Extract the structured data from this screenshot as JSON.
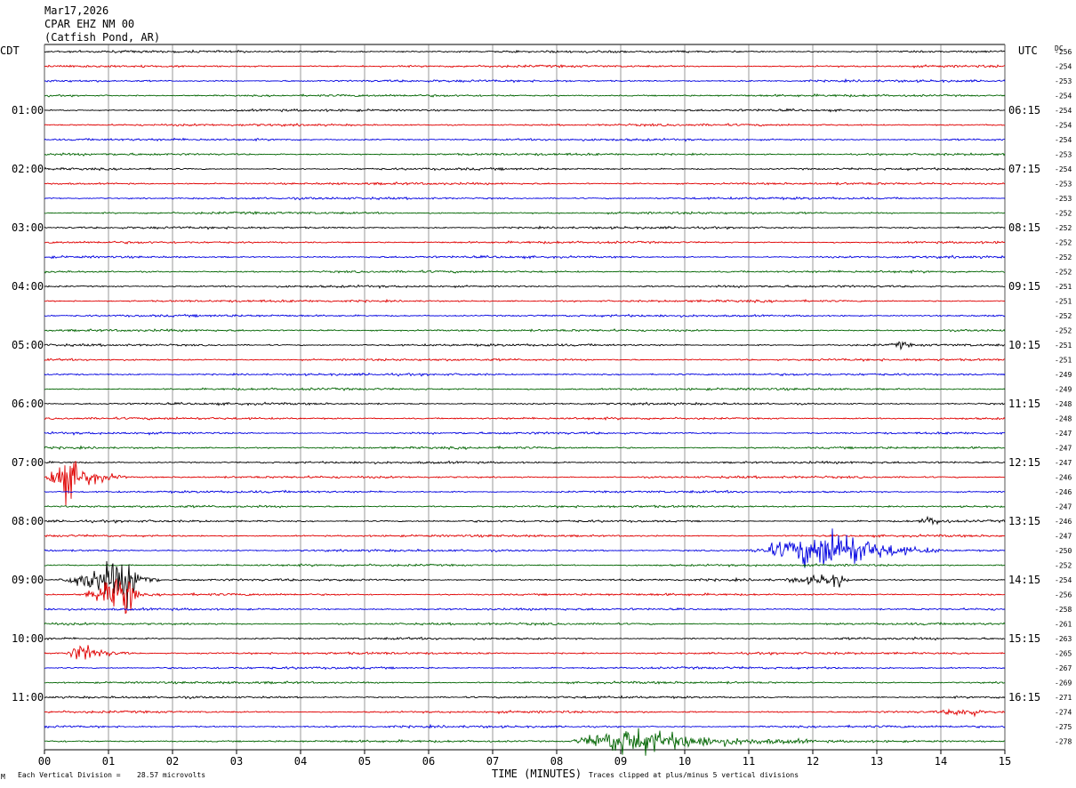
{
  "header": {
    "date": "Mar17,2026",
    "station": "CPAR EHZ NM 00",
    "location": "(Catfish Pond, AR)"
  },
  "left_timezone": "CDT",
  "right_timezone": "UTC",
  "dc_label": "DC",
  "footer": {
    "scale_prefix": "Each Vertical Division =",
    "scale_value": "28.57 microvolts",
    "clip_note": "Traces clipped at plus/minus 5 vertical divisions",
    "corner_mark": "M"
  },
  "chart_data": {
    "type": "line",
    "title": "",
    "xlabel": "TIME (MINUTES)",
    "ylabel": "",
    "xlim": [
      0,
      15
    ],
    "x_ticks": [
      "00",
      "01",
      "02",
      "03",
      "04",
      "05",
      "06",
      "07",
      "08",
      "09",
      "10",
      "11",
      "12",
      "13",
      "14",
      "15"
    ],
    "rows_per_hour": 4,
    "trace_colors": [
      "#000000",
      "#e00000",
      "#0000e0",
      "#006400"
    ],
    "left_hour_labels": [
      "01:00",
      "02:00",
      "03:00",
      "04:00",
      "05:00",
      "06:00",
      "07:00",
      "08:00",
      "09:00",
      "10:00",
      "11:00"
    ],
    "right_hour_labels": [
      "06:15",
      "07:15",
      "08:15",
      "09:15",
      "10:15",
      "11:15",
      "12:15",
      "13:15",
      "14:15",
      "15:15",
      "16:15"
    ],
    "dc_offsets": [
      "-256",
      "-254",
      "-253",
      "-254",
      "-254",
      "-254",
      "-254",
      "-253",
      "-254",
      "-253",
      "-253",
      "-252",
      "-252",
      "-252",
      "-252",
      "-252",
      "-251",
      "-251",
      "-252",
      "-252",
      "-251",
      "-251",
      "-249",
      "-249",
      "-248",
      "-248",
      "-247",
      "-247",
      "-247",
      "-246",
      "-246",
      "-247",
      "-246",
      "-247",
      "-250",
      "-252",
      "-254",
      "-256",
      "-258",
      "-261",
      "-263",
      "-265",
      "-267",
      "-269",
      "-271",
      "-274",
      "-275",
      "-278"
    ],
    "events": [
      {
        "row": 29,
        "minute_start": 0.0,
        "minute_end": 1.3,
        "peak_minute": 0.35,
        "amplitude_div": 5
      },
      {
        "row": 36,
        "minute_start": 0.2,
        "minute_end": 1.8,
        "peak_minute": 1.35,
        "amplitude_div": 5
      },
      {
        "row": 37,
        "minute_start": 0.6,
        "minute_end": 1.5,
        "peak_minute": 1.35,
        "amplitude_div": 5
      },
      {
        "row": 41,
        "minute_start": 0.3,
        "minute_end": 1.4,
        "peak_minute": 0.6,
        "amplitude_div": 2.2
      },
      {
        "row": 34,
        "minute_start": 11.0,
        "minute_end": 14.0,
        "peak_minute": 12.45,
        "amplitude_div": 5
      },
      {
        "row": 36,
        "minute_start": 11.5,
        "minute_end": 12.6,
        "peak_minute": 12.45,
        "amplitude_div": 1.5
      },
      {
        "row": 47,
        "minute_start": 8.2,
        "minute_end": 12.0,
        "peak_minute": 9.15,
        "amplitude_div": 3.5
      },
      {
        "row": 32,
        "minute_start": 13.6,
        "minute_end": 14.2,
        "peak_minute": 13.9,
        "amplitude_div": 1
      },
      {
        "row": 45,
        "minute_start": 13.9,
        "minute_end": 14.7,
        "peak_minute": 14.5,
        "amplitude_div": 0.9
      },
      {
        "row": 20,
        "minute_start": 13.2,
        "minute_end": 13.6,
        "peak_minute": 13.4,
        "amplitude_div": 0.8
      }
    ]
  }
}
